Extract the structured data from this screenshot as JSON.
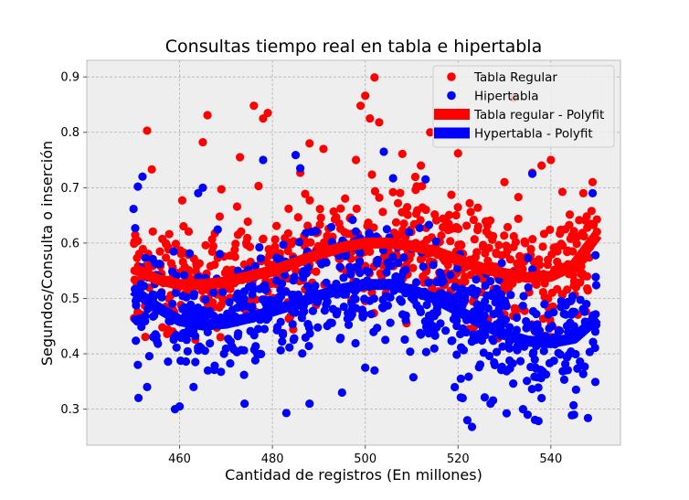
{
  "chart_data": {
    "type": "scatter",
    "title": "Consultas tiempo real en tabla e hipertabla",
    "xlabel": "Cantidad de registros (En millones)",
    "ylabel": "Segundos/Consulta o inserción",
    "xlim": [
      440,
      555
    ],
    "ylim": [
      0.235,
      0.93
    ],
    "xticks": [
      460,
      480,
      500,
      520,
      540
    ],
    "yticks": [
      0.3,
      0.4,
      0.5,
      0.6,
      0.7,
      0.8,
      0.9
    ],
    "grid": true,
    "legend_position": "top-right",
    "x_range": [
      450,
      550
    ],
    "series": [
      {
        "name": "Tabla Regular",
        "kind": "points",
        "color": "#ff0000",
        "fit": {
          "x": [
            450,
            455,
            460,
            465,
            470,
            475,
            480,
            485,
            490,
            495,
            500,
            505,
            510,
            515,
            520,
            525,
            530,
            535,
            540,
            545,
            550
          ],
          "y": [
            0.555,
            0.535,
            0.525,
            0.525,
            0.53,
            0.54,
            0.55,
            0.565,
            0.58,
            0.592,
            0.6,
            0.6,
            0.595,
            0.585,
            0.57,
            0.555,
            0.545,
            0.538,
            0.54,
            0.56,
            0.615
          ]
        },
        "spread": 0.055,
        "outliers": [
          {
            "x": 453,
            "y": 0.803
          },
          {
            "x": 454,
            "y": 0.733
          },
          {
            "x": 465,
            "y": 0.782
          },
          {
            "x": 466,
            "y": 0.831
          },
          {
            "x": 469,
            "y": 0.697
          },
          {
            "x": 473,
            "y": 0.755
          },
          {
            "x": 476,
            "y": 0.848
          },
          {
            "x": 477,
            "y": 0.703
          },
          {
            "x": 478,
            "y": 0.825
          },
          {
            "x": 479,
            "y": 0.835
          },
          {
            "x": 486,
            "y": 0.727
          },
          {
            "x": 488,
            "y": 0.78
          },
          {
            "x": 491,
            "y": 0.77
          },
          {
            "x": 498,
            "y": 0.75
          },
          {
            "x": 499,
            "y": 0.848
          },
          {
            "x": 500,
            "y": 0.866
          },
          {
            "x": 501,
            "y": 0.825
          },
          {
            "x": 502,
            "y": 0.899
          },
          {
            "x": 503,
            "y": 0.818
          },
          {
            "x": 508,
            "y": 0.761
          },
          {
            "x": 512,
            "y": 0.74
          },
          {
            "x": 514,
            "y": 0.8
          },
          {
            "x": 520,
            "y": 0.762
          },
          {
            "x": 530,
            "y": 0.71
          },
          {
            "x": 532,
            "y": 0.862
          },
          {
            "x": 533,
            "y": 0.683
          },
          {
            "x": 536,
            "y": 0.727
          },
          {
            "x": 538,
            "y": 0.74
          },
          {
            "x": 540,
            "y": 0.75
          },
          {
            "x": 547,
            "y": 0.69
          },
          {
            "x": 549,
            "y": 0.71
          }
        ]
      },
      {
        "name": "Hipertabla",
        "kind": "points",
        "color": "#0000ff",
        "fit": {
          "x": [
            450,
            455,
            460,
            465,
            470,
            475,
            480,
            485,
            490,
            495,
            500,
            505,
            510,
            515,
            520,
            525,
            530,
            535,
            540,
            545,
            550
          ],
          "y": [
            0.515,
            0.485,
            0.46,
            0.452,
            0.455,
            0.465,
            0.477,
            0.49,
            0.505,
            0.517,
            0.525,
            0.525,
            0.515,
            0.5,
            0.478,
            0.455,
            0.435,
            0.423,
            0.42,
            0.428,
            0.465
          ]
        },
        "spread": 0.06,
        "outliers": [
          {
            "x": 451,
            "y": 0.702
          },
          {
            "x": 452,
            "y": 0.72
          },
          {
            "x": 451,
            "y": 0.38
          },
          {
            "x": 453,
            "y": 0.34
          },
          {
            "x": 459,
            "y": 0.3
          },
          {
            "x": 460,
            "y": 0.305
          },
          {
            "x": 463,
            "y": 0.34
          },
          {
            "x": 464,
            "y": 0.69
          },
          {
            "x": 465,
            "y": 0.7
          },
          {
            "x": 474,
            "y": 0.31
          },
          {
            "x": 478,
            "y": 0.75
          },
          {
            "x": 483,
            "y": 0.293
          },
          {
            "x": 485,
            "y": 0.759
          },
          {
            "x": 486,
            "y": 0.735
          },
          {
            "x": 488,
            "y": 0.31
          },
          {
            "x": 495,
            "y": 0.33
          },
          {
            "x": 500,
            "y": 0.375
          },
          {
            "x": 502,
            "y": 0.37
          },
          {
            "x": 504,
            "y": 0.765
          },
          {
            "x": 506,
            "y": 0.717
          },
          {
            "x": 513,
            "y": 0.715
          },
          {
            "x": 521,
            "y": 0.32
          },
          {
            "x": 522,
            "y": 0.28
          },
          {
            "x": 523,
            "y": 0.268
          },
          {
            "x": 527,
            "y": 0.31
          },
          {
            "x": 534,
            "y": 0.3
          },
          {
            "x": 535,
            "y": 0.29
          },
          {
            "x": 536,
            "y": 0.725
          },
          {
            "x": 538,
            "y": 0.32
          },
          {
            "x": 545,
            "y": 0.29
          },
          {
            "x": 548,
            "y": 0.284
          },
          {
            "x": 549,
            "y": 0.69
          }
        ]
      },
      {
        "name": "Tabla regular - Polyfit",
        "kind": "fit",
        "color": "#ff0000",
        "of": 0
      },
      {
        "name": "Hypertabla - Polyfit",
        "kind": "fit",
        "color": "#0000ff",
        "of": 1
      }
    ]
  }
}
